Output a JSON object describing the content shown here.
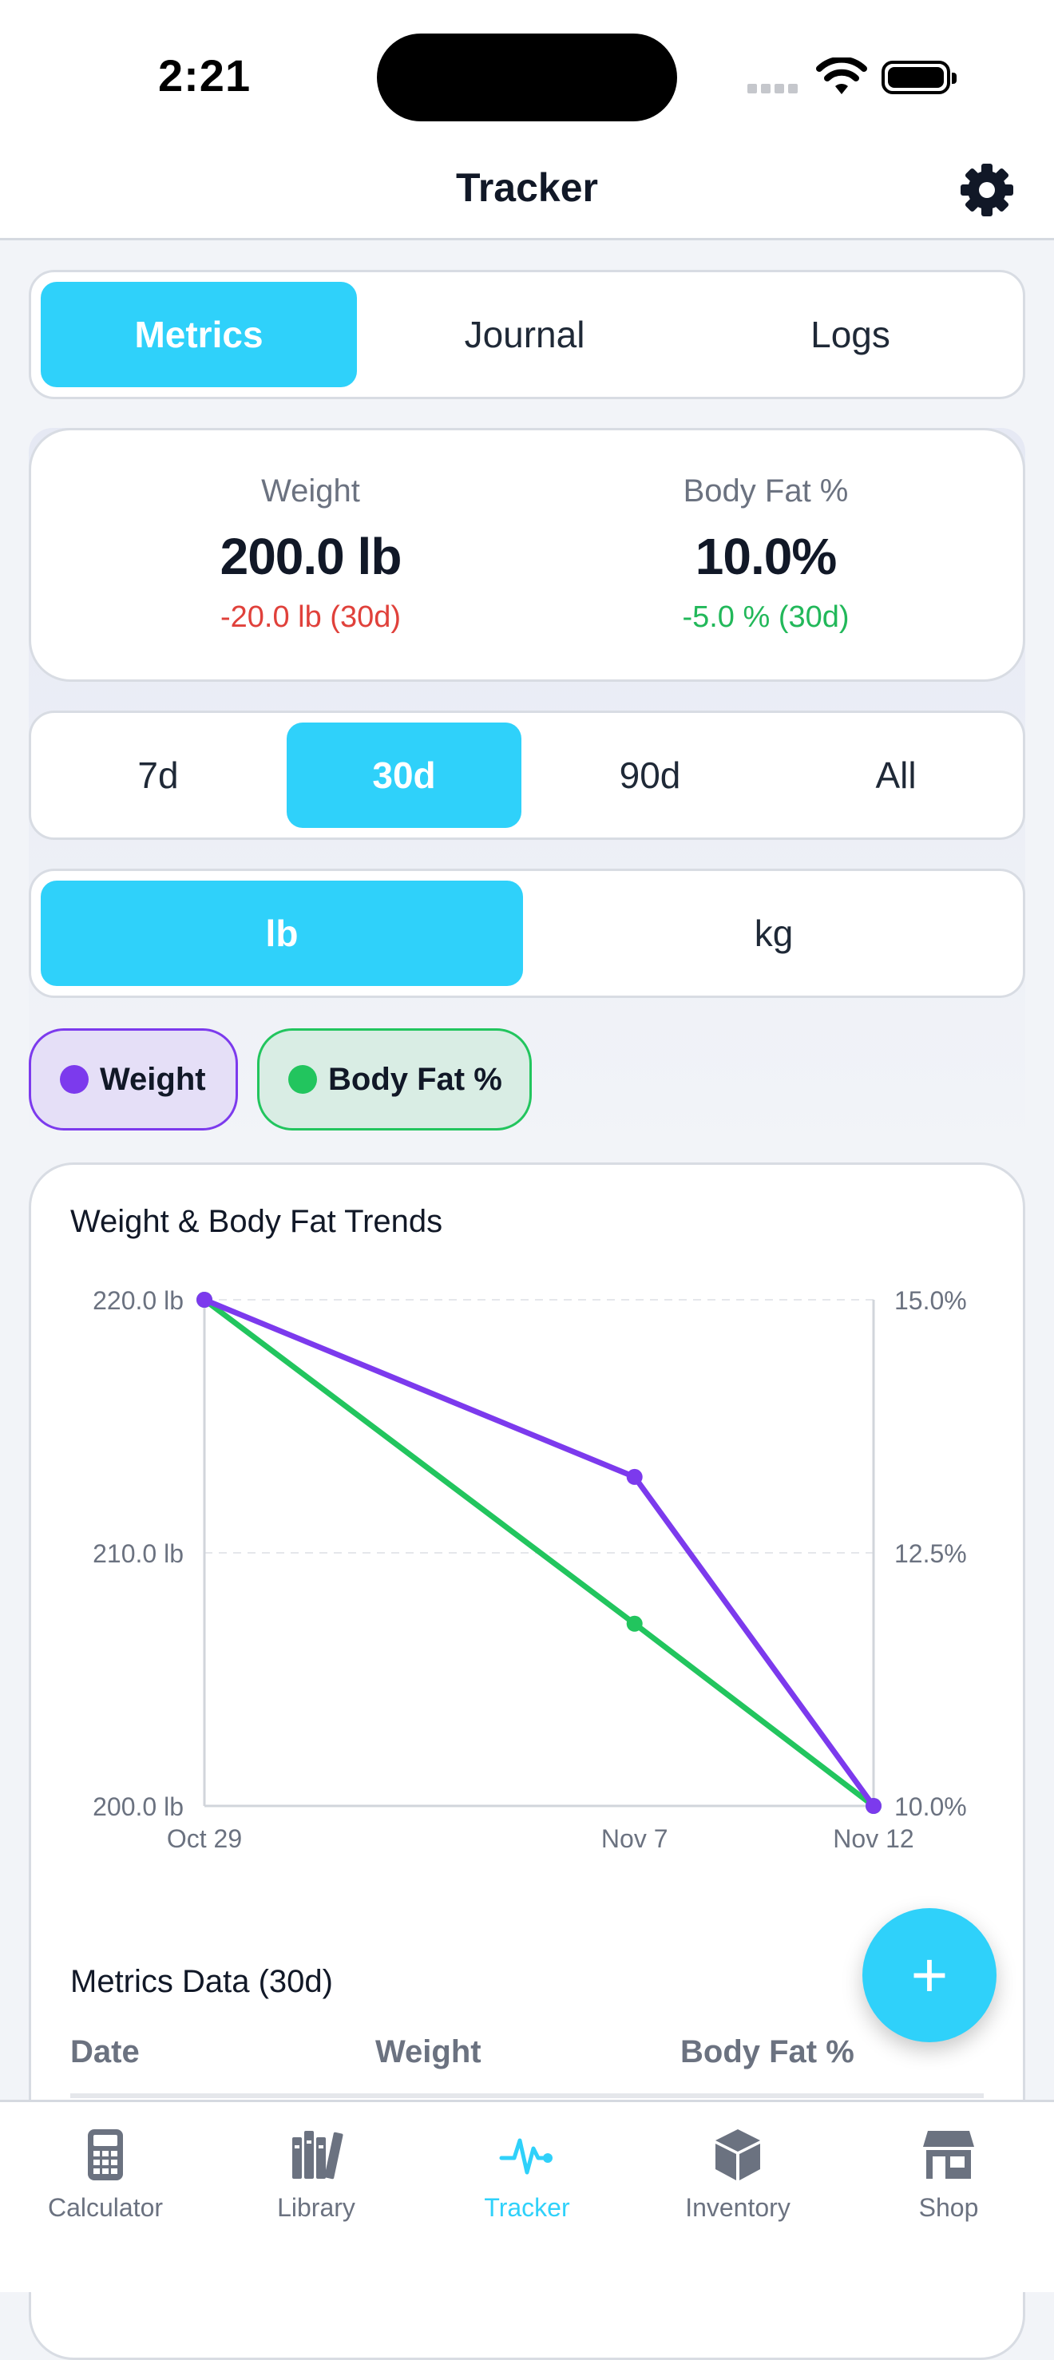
{
  "status": {
    "time": "2:21"
  },
  "nav": {
    "title": "Tracker"
  },
  "tabs": [
    {
      "label": "Metrics",
      "active": true
    },
    {
      "label": "Journal",
      "active": false
    },
    {
      "label": "Logs",
      "active": false
    }
  ],
  "summary": {
    "weight": {
      "label": "Weight",
      "value": "200.0 lb",
      "change": "-20.0 lb (30d)"
    },
    "body_fat": {
      "label": "Body Fat %",
      "value": "10.0%",
      "change": "-5.0 % (30d)"
    }
  },
  "ranges": [
    {
      "label": "7d",
      "active": false
    },
    {
      "label": "30d",
      "active": true
    },
    {
      "label": "90d",
      "active": false
    },
    {
      "label": "All",
      "active": false
    }
  ],
  "units": [
    {
      "label": "lb",
      "active": true
    },
    {
      "label": "kg",
      "active": false
    }
  ],
  "chips": [
    {
      "label": "Weight",
      "color": "#7c3aed"
    },
    {
      "label": "Body Fat %",
      "color": "#22c55e"
    }
  ],
  "chart_data": {
    "type": "line",
    "title": "Weight & Body Fat Trends",
    "x": [
      "Oct 29",
      "Nov 7",
      "Nov 12"
    ],
    "series": [
      {
        "name": "Weight",
        "axis": "left",
        "color": "#7c3aed",
        "values": [
          220.0,
          213.0,
          200.0
        ]
      },
      {
        "name": "Body Fat %",
        "axis": "right",
        "color": "#22c55e",
        "values": [
          15.0,
          11.8,
          10.0
        ]
      }
    ],
    "y_left": {
      "ylim": [
        200,
        220
      ],
      "ticks": [
        220,
        210,
        200
      ],
      "tick_labels": [
        "220.0 lb",
        "210.0 lb",
        "200.0 lb"
      ]
    },
    "y_right": {
      "ylim": [
        10,
        15
      ],
      "ticks": [
        15,
        12.5,
        10
      ],
      "tick_labels": [
        "15.0%",
        "12.5%",
        "10.0%"
      ]
    },
    "x_positions_days": [
      0,
      9,
      14
    ],
    "grid": true
  },
  "table": {
    "title": "Metrics Data (30d)",
    "headers": [
      "Date",
      "Weight",
      "Body Fat %"
    ]
  },
  "fab": {
    "label": "+"
  },
  "tabbar": [
    {
      "label": "Calculator",
      "icon": "calculator-icon",
      "active": false
    },
    {
      "label": "Library",
      "icon": "books-icon",
      "active": false
    },
    {
      "label": "Tracker",
      "icon": "heartbeat-icon",
      "active": true
    },
    {
      "label": "Inventory",
      "icon": "cube-icon",
      "active": false
    },
    {
      "label": "Shop",
      "icon": "store-icon",
      "active": false
    }
  ],
  "colors": {
    "accent": "#2fd1fa",
    "weight": "#7c3aed",
    "body_fat": "#22c55e",
    "negative": "#e0413b"
  }
}
